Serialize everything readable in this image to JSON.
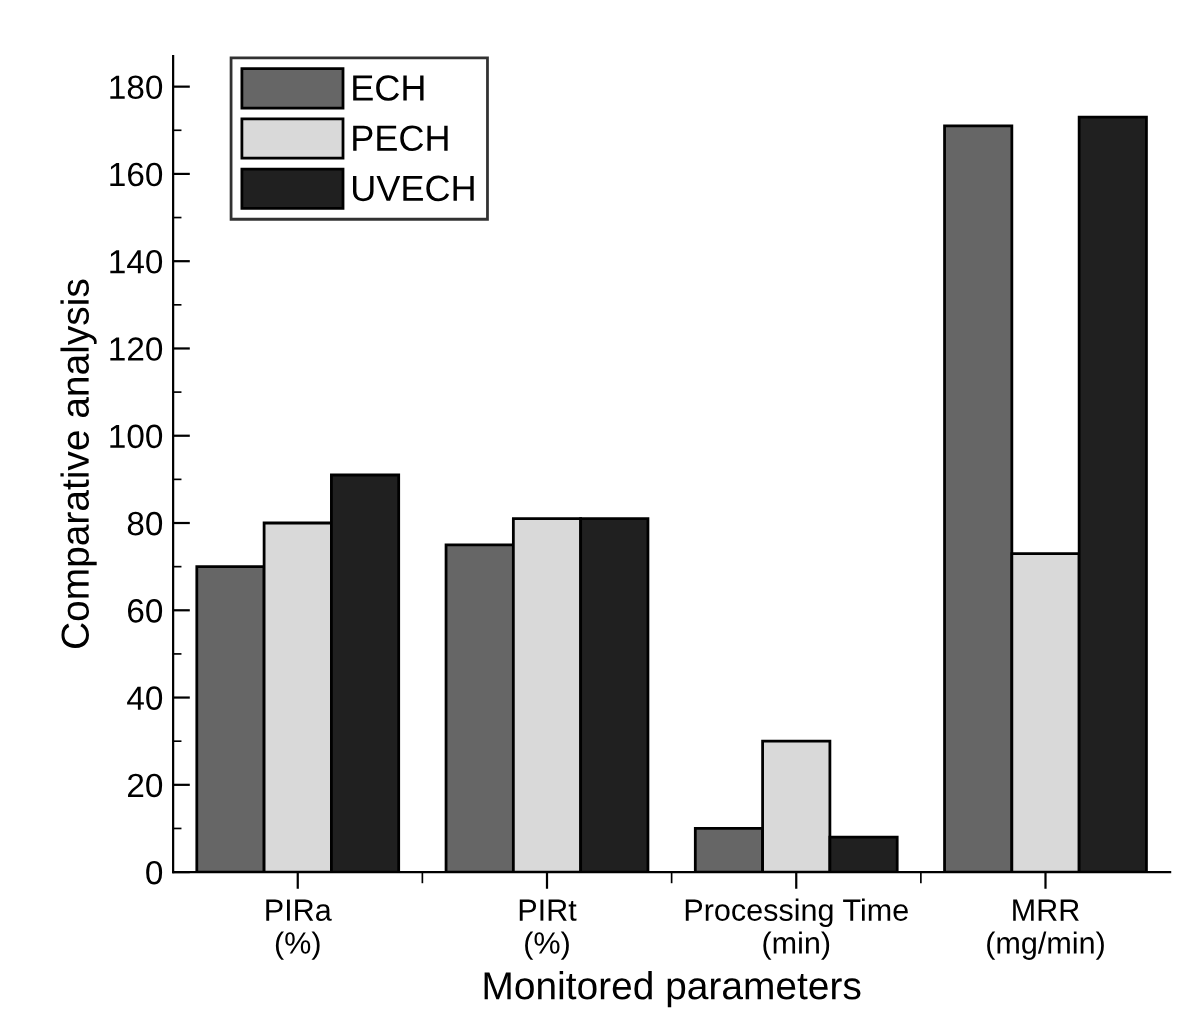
{
  "chart_data": {
    "type": "bar",
    "xlabel": "Monitored parameters",
    "ylabel": "Comparative analysis",
    "categories": [
      "PIRa\n(%)",
      "PIRt\n(%)",
      "Processing Time\n(min)",
      "MRR\n(mg/min)"
    ],
    "series": [
      {
        "name": "ECH",
        "color": "#666666",
        "values": [
          70,
          75,
          10,
          171
        ]
      },
      {
        "name": "PECH",
        "color": "#d9d9d9",
        "values": [
          80,
          81,
          30,
          73
        ]
      },
      {
        "name": "UVECH",
        "color": "#202020",
        "values": [
          91,
          81,
          8,
          173
        ]
      }
    ],
    "ylim": [
      0,
      187
    ],
    "yticks": [
      0,
      20,
      40,
      60,
      80,
      100,
      120,
      140,
      160,
      180
    ],
    "grid": false,
    "legend": "top left"
  }
}
